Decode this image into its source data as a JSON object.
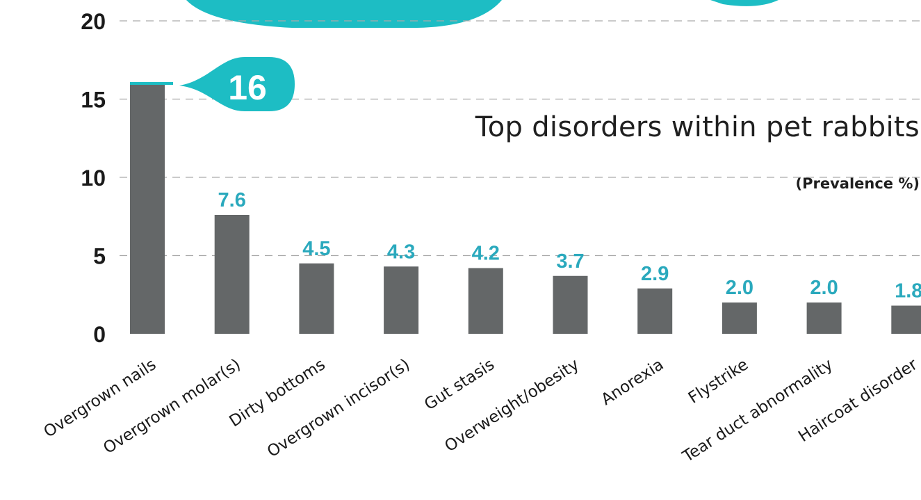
{
  "chart_data": {
    "type": "bar",
    "title": "Top disorders within pet rabbits",
    "subtitle": "(Prevalence %)",
    "categories": [
      "Overgrown nails",
      "Overgrown molar(s)",
      "Dirty bottoms",
      "Overgrown incisor(s)",
      "Gut stasis",
      "Overweight/obesity",
      "Anorexia",
      "Flystrike",
      "Tear duct abnormality",
      "Haircoat disorder"
    ],
    "values": [
      16,
      7.6,
      4.5,
      4.3,
      4.2,
      3.7,
      2.9,
      2.0,
      2.0,
      1.8
    ],
    "value_labels": [
      "16",
      "7.6",
      "4.5",
      "4.3",
      "4.2",
      "3.7",
      "2.9",
      "2.0",
      "2.0",
      "1.8"
    ],
    "ylim": [
      0,
      20
    ],
    "yticks": [
      "0",
      "5",
      "10",
      "15",
      "20"
    ],
    "grid": true,
    "xlabel": "",
    "ylabel": "",
    "colors": {
      "bar": "#646768",
      "accent": "#1dbdc4",
      "value_label": "#2aa9bd",
      "grid": "#aaaaaa"
    }
  }
}
